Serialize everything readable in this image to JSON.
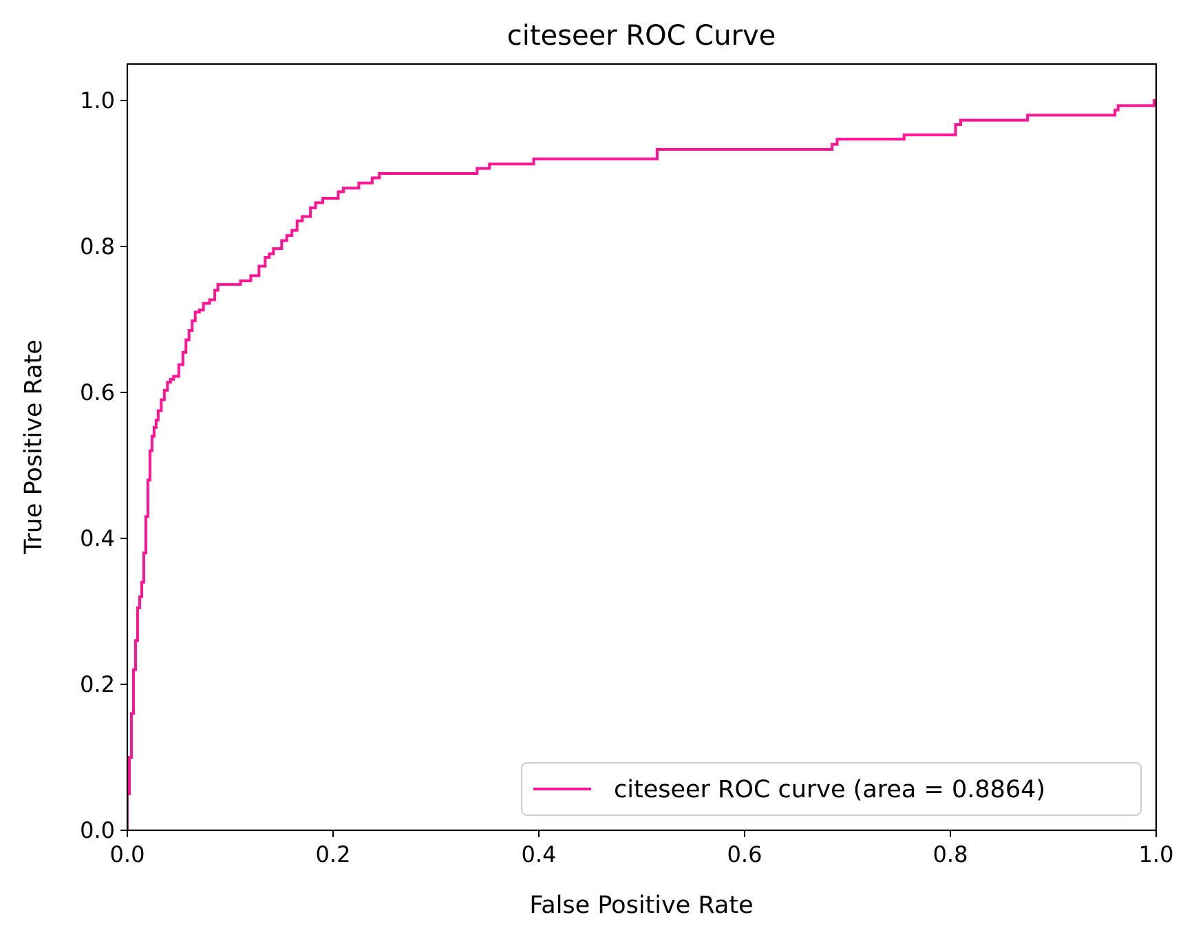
{
  "chart_data": {
    "type": "line",
    "title": "citeseer ROC Curve",
    "xlabel": "False Positive Rate",
    "ylabel": "True Positive Rate",
    "xlim": [
      0.0,
      1.0
    ],
    "ylim": [
      0.0,
      1.05
    ],
    "xticks": [
      "0.0",
      "0.2",
      "0.4",
      "0.6",
      "0.8",
      "1.0"
    ],
    "yticks": [
      "0.0",
      "0.2",
      "0.4",
      "0.6",
      "0.8",
      "1.0"
    ],
    "grid": false,
    "legend_position": "lower right",
    "series": [
      {
        "name": "citeseer ROC curve (area = 0.8864)",
        "color": "#ff1493",
        "x": [
          0.0,
          0.0,
          0.002,
          0.002,
          0.004,
          0.004,
          0.006,
          0.006,
          0.008,
          0.008,
          0.01,
          0.01,
          0.012,
          0.012,
          0.014,
          0.014,
          0.016,
          0.016,
          0.018,
          0.018,
          0.02,
          0.02,
          0.022,
          0.022,
          0.024,
          0.024,
          0.026,
          0.026,
          0.028,
          0.028,
          0.03,
          0.03,
          0.033,
          0.033,
          0.036,
          0.036,
          0.039,
          0.039,
          0.042,
          0.042,
          0.045,
          0.045,
          0.05,
          0.05,
          0.054,
          0.054,
          0.057,
          0.057,
          0.06,
          0.06,
          0.063,
          0.063,
          0.066,
          0.066,
          0.07,
          0.07,
          0.074,
          0.074,
          0.08,
          0.08,
          0.085,
          0.085,
          0.088,
          0.088,
          0.11,
          0.11,
          0.12,
          0.12,
          0.128,
          0.128,
          0.134,
          0.134,
          0.138,
          0.138,
          0.142,
          0.142,
          0.15,
          0.15,
          0.155,
          0.155,
          0.16,
          0.16,
          0.165,
          0.165,
          0.17,
          0.17,
          0.178,
          0.178,
          0.183,
          0.183,
          0.19,
          0.19,
          0.205,
          0.205,
          0.21,
          0.21,
          0.225,
          0.225,
          0.238,
          0.238,
          0.245,
          0.245,
          0.34,
          0.34,
          0.352,
          0.352,
          0.395,
          0.395,
          0.515,
          0.515,
          0.685,
          0.685,
          0.69,
          0.69,
          0.755,
          0.755,
          0.805,
          0.805,
          0.81,
          0.81,
          0.875,
          0.875,
          0.96,
          0.96,
          0.963,
          0.963,
          0.998,
          0.998,
          1.0
        ],
        "y": [
          0.0,
          0.05,
          0.05,
          0.1,
          0.1,
          0.16,
          0.16,
          0.22,
          0.22,
          0.26,
          0.26,
          0.305,
          0.305,
          0.32,
          0.32,
          0.34,
          0.34,
          0.38,
          0.38,
          0.43,
          0.43,
          0.48,
          0.48,
          0.52,
          0.52,
          0.54,
          0.54,
          0.552,
          0.552,
          0.562,
          0.562,
          0.575,
          0.575,
          0.59,
          0.59,
          0.603,
          0.603,
          0.614,
          0.614,
          0.618,
          0.618,
          0.622,
          0.622,
          0.638,
          0.638,
          0.655,
          0.655,
          0.672,
          0.672,
          0.685,
          0.685,
          0.698,
          0.698,
          0.71,
          0.71,
          0.713,
          0.713,
          0.722,
          0.722,
          0.727,
          0.727,
          0.74,
          0.74,
          0.748,
          0.748,
          0.753,
          0.753,
          0.76,
          0.76,
          0.773,
          0.773,
          0.785,
          0.785,
          0.79,
          0.79,
          0.797,
          0.797,
          0.808,
          0.808,
          0.815,
          0.815,
          0.822,
          0.822,
          0.835,
          0.835,
          0.841,
          0.841,
          0.853,
          0.853,
          0.86,
          0.86,
          0.866,
          0.866,
          0.875,
          0.875,
          0.88,
          0.88,
          0.887,
          0.887,
          0.894,
          0.894,
          0.9,
          0.9,
          0.907,
          0.907,
          0.913,
          0.913,
          0.92,
          0.92,
          0.933,
          0.933,
          0.94,
          0.94,
          0.947,
          0.947,
          0.953,
          0.953,
          0.967,
          0.967,
          0.973,
          0.973,
          0.98,
          0.98,
          0.987,
          0.987,
          0.993,
          0.993,
          1.0,
          1.0
        ]
      }
    ]
  }
}
